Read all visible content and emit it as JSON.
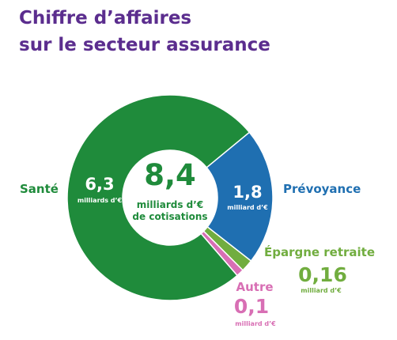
{
  "title": {
    "line1": "Chiffre d’affaires",
    "line2": "sur le secteur assurance"
  },
  "colors": {
    "title": "#5b2d8e",
    "sante": "#1f8b3b",
    "prevoyance": "#1f6fb1",
    "epargne": "#71ad3f",
    "autre": "#d86fb4"
  },
  "chart_data": {
    "type": "pie",
    "variant": "donut",
    "center": {
      "value": "8,4",
      "unit_line1": "milliards d’€",
      "unit_line2": "de cotisations"
    },
    "slices": [
      {
        "key": "sante",
        "label": "Santé",
        "value": 6.3,
        "value_label": "6,3",
        "unit": "milliards d’€",
        "color": "#1f8b3b"
      },
      {
        "key": "prevoyance",
        "label": "Prévoyance",
        "value": 1.8,
        "value_label": "1,8",
        "unit": "milliard d’€",
        "color": "#1f6fb1"
      },
      {
        "key": "epargne",
        "label": "Épargne retraite",
        "value": 0.16,
        "value_label": "0,16",
        "unit": "milliard d’€",
        "color": "#71ad3f"
      },
      {
        "key": "autre",
        "label": "Autre",
        "value": 0.1,
        "value_label": "0,1",
        "unit": "milliard d’€",
        "color": "#d86fb4"
      }
    ]
  }
}
